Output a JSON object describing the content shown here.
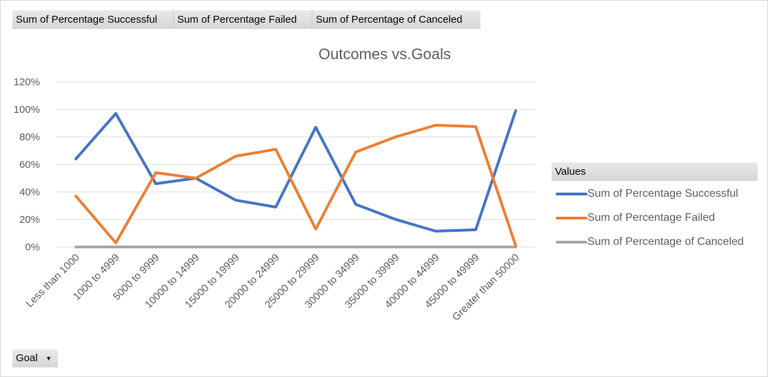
{
  "field_buttons": {
    "successful": "Sum of Percentage  Successful",
    "failed": "Sum of Percentage  Failed",
    "canceled": "Sum of Percentage  of Canceled"
  },
  "legend": {
    "header": "Values"
  },
  "filter_button": {
    "label": "Goal"
  },
  "colors": {
    "successful": "#4472c4",
    "failed": "#ed7d31",
    "canceled": "#a5a5a5",
    "grid": "#d9d9d9",
    "text": "#595959"
  },
  "chart_data": {
    "type": "line",
    "title": "Outcomes vs.Goals",
    "xlabel": "",
    "ylabel": "",
    "ylim": [
      0,
      1.2
    ],
    "y_ticks": [
      "0%",
      "20%",
      "40%",
      "60%",
      "80%",
      "100%",
      "120%"
    ],
    "grid": true,
    "legend_position": "right",
    "categories": [
      "Less than 1000",
      "1000 to 4999",
      "5000 to 9999",
      "10000 to 14999",
      "15000 to 19999",
      "20000 to 24999",
      "25000 to 29999",
      "30000 to 34999",
      "35000 to 39999",
      "40000 to 44999",
      "45000 to 49999",
      "Greater than 50000"
    ],
    "series": [
      {
        "name": "Sum of Percentage Successful",
        "color": "#4472c4",
        "values": [
          0.64,
          0.97,
          0.46,
          0.5,
          0.34,
          0.29,
          0.87,
          0.31,
          0.2,
          0.115,
          0.125,
          0.99
        ]
      },
      {
        "name": "Sum of Percentage Failed",
        "color": "#ed7d31",
        "values": [
          0.37,
          0.03,
          0.54,
          0.5,
          0.66,
          0.71,
          0.13,
          0.69,
          0.8,
          0.885,
          0.875,
          0.01
        ]
      },
      {
        "name": "Sum of Percentage of Canceled",
        "color": "#a5a5a5",
        "values": [
          0,
          0,
          0,
          0,
          0,
          0,
          0,
          0,
          0,
          0,
          0,
          0
        ]
      }
    ]
  }
}
